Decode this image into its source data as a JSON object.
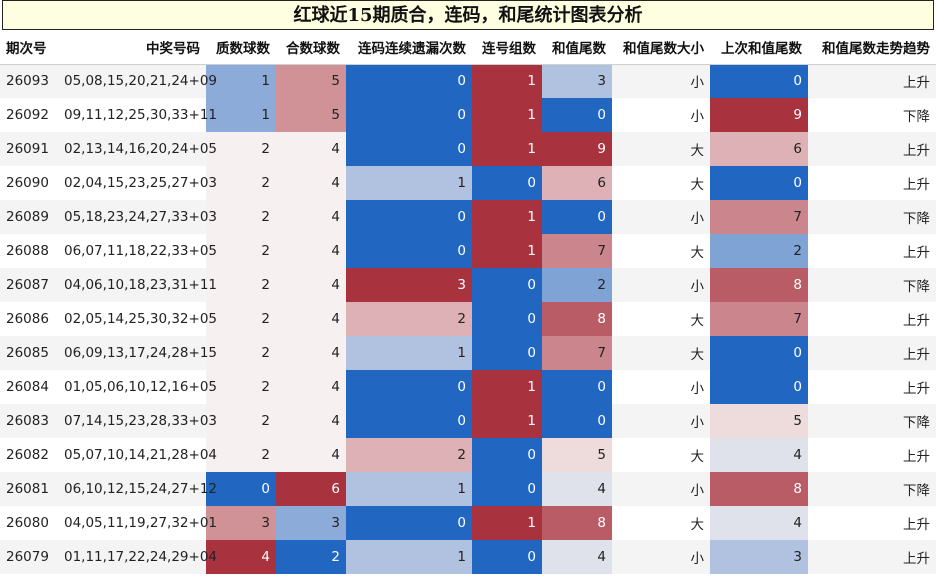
{
  "title": "红球近15期质合，连码，和尾统计图表分析",
  "chart_data": {
    "type": "table",
    "title": "红球近15期质合，连码，和尾统计图表分析",
    "columns": [
      "期次号",
      "中奖号码",
      "质数球数",
      "合数球数",
      "连码连续遗漏次数",
      "连号组数",
      "和值尾数",
      "和值尾数大小",
      "上次和值尾数",
      "和值尾数走势趋势"
    ],
    "rows": [
      [
        "26093",
        "05,08,15,20,21,24+09",
        1,
        5,
        0,
        1,
        3,
        "小",
        0,
        "上升"
      ],
      [
        "26092",
        "09,11,12,25,30,33+11",
        1,
        5,
        0,
        1,
        0,
        "小",
        9,
        "下降"
      ],
      [
        "26091",
        "02,13,14,16,20,24+05",
        2,
        4,
        0,
        1,
        9,
        "大",
        6,
        "上升"
      ],
      [
        "26090",
        "02,04,15,23,25,27+03",
        2,
        4,
        1,
        0,
        6,
        "大",
        0,
        "上升"
      ],
      [
        "26089",
        "05,18,23,24,27,33+03",
        2,
        4,
        0,
        1,
        0,
        "小",
        7,
        "下降"
      ],
      [
        "26088",
        "06,07,11,18,22,33+05",
        2,
        4,
        0,
        1,
        7,
        "大",
        2,
        "上升"
      ],
      [
        "26087",
        "04,06,10,18,23,31+11",
        2,
        4,
        3,
        0,
        2,
        "小",
        8,
        "下降"
      ],
      [
        "26086",
        "02,05,14,25,30,32+05",
        2,
        4,
        2,
        0,
        8,
        "大",
        7,
        "上升"
      ],
      [
        "26085",
        "06,09,13,17,24,28+15",
        2,
        4,
        1,
        0,
        7,
        "大",
        0,
        "上升"
      ],
      [
        "26084",
        "01,05,06,10,12,16+05",
        2,
        4,
        0,
        1,
        0,
        "小",
        0,
        "上升"
      ],
      [
        "26083",
        "07,14,15,23,28,33+03",
        2,
        4,
        0,
        1,
        0,
        "小",
        5,
        "下降"
      ],
      [
        "26082",
        "05,07,10,14,21,28+04",
        2,
        4,
        2,
        0,
        5,
        "大",
        4,
        "上升"
      ],
      [
        "26081",
        "06,10,12,15,24,27+12",
        0,
        6,
        1,
        0,
        4,
        "小",
        8,
        "下降"
      ],
      [
        "26080",
        "04,05,11,19,27,32+01",
        3,
        3,
        0,
        1,
        8,
        "大",
        4,
        "上升"
      ],
      [
        "26079",
        "01,11,17,22,24,29+04",
        4,
        2,
        1,
        0,
        4,
        "小",
        3,
        "上升"
      ]
    ],
    "color_scale": {
      "low": "#2166c0",
      "mid": "#f7f0f0",
      "high": "#a8323e"
    }
  }
}
